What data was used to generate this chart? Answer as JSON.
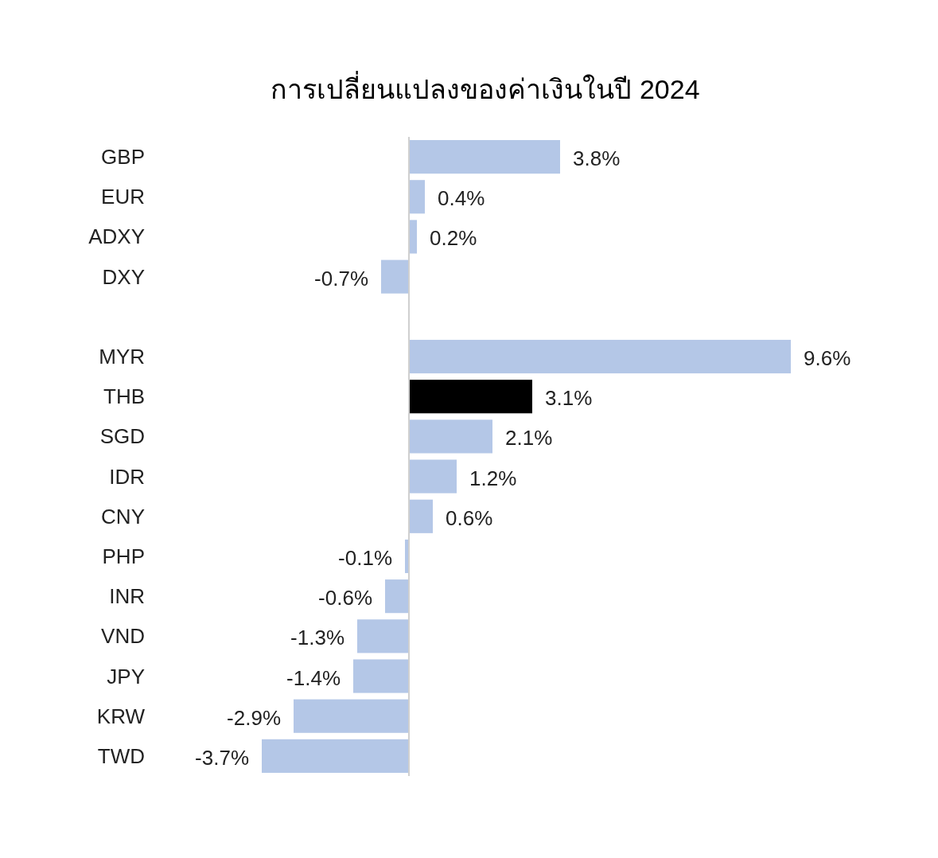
{
  "chart_data": {
    "type": "bar",
    "orientation": "horizontal",
    "title": "การเปลี่ยนแปลงของค่าเงินในปี 2024",
    "categories": [
      "GBP",
      "EUR",
      "ADXY",
      "DXY",
      null,
      "MYR",
      "THB",
      "SGD",
      "IDR",
      "CNY",
      "PHP",
      "INR",
      "VND",
      "JPY",
      "KRW",
      "TWD"
    ],
    "values": [
      3.8,
      0.4,
      0.2,
      -0.7,
      null,
      9.6,
      3.1,
      2.1,
      1.2,
      0.6,
      -0.1,
      -0.6,
      -1.3,
      -1.4,
      -2.9,
      -3.7
    ],
    "value_labels": [
      "3.8%",
      "0.4%",
      "0.2%",
      "-0.7%",
      null,
      "9.6%",
      "3.1%",
      "2.1%",
      "1.2%",
      "0.6%",
      "-0.1%",
      "-0.6%",
      "-1.3%",
      "-1.4%",
      "-2.9%",
      "-3.7%"
    ],
    "colors": [
      "#b4c7e7",
      "#b4c7e7",
      "#b4c7e7",
      "#b4c7e7",
      null,
      "#b4c7e7",
      "#000000",
      "#b4c7e7",
      "#b4c7e7",
      "#b4c7e7",
      "#b4c7e7",
      "#b4c7e7",
      "#b4c7e7",
      "#b4c7e7",
      "#b4c7e7",
      "#b4c7e7"
    ]
  }
}
